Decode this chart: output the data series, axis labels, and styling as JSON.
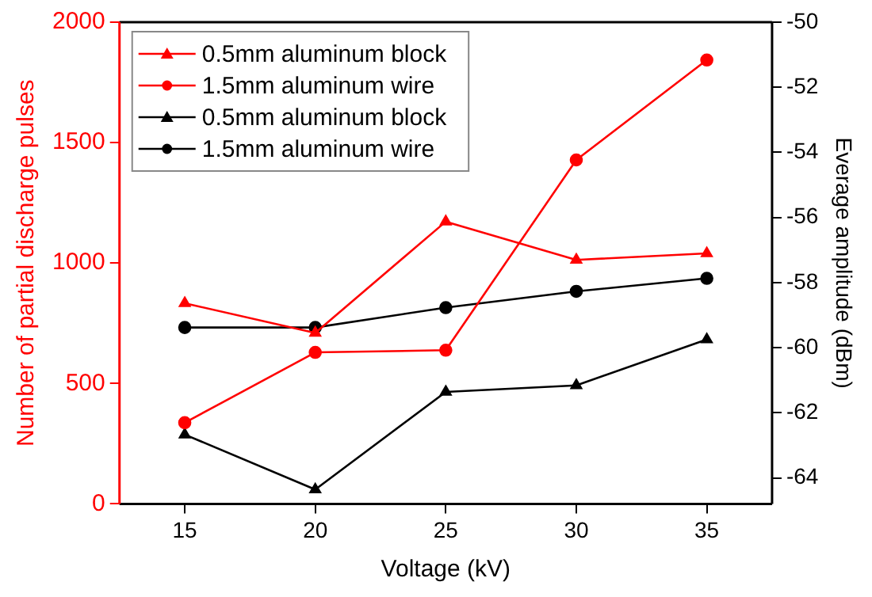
{
  "chart_data": {
    "type": "line",
    "xlabel": "Voltage (kV)",
    "ylabel": "Number of partial discharge pulses",
    "y2label": "Everage amplitude (dBm)",
    "x": [
      15,
      20,
      25,
      30,
      35
    ],
    "xlim": [
      12.5,
      37.5
    ],
    "xticks": [
      15,
      20,
      25,
      30,
      35
    ],
    "ylim": [
      0,
      2000
    ],
    "yticks": [
      0,
      500,
      1000,
      1500,
      2000
    ],
    "y2lim": [
      -64.8,
      -50
    ],
    "y2ticks": [
      -64,
      -62,
      -60,
      -58,
      -56,
      -54,
      -52,
      -50
    ],
    "legend": "top left",
    "grid": false,
    "series": [
      {
        "name": "0.5mm aluminum block",
        "color": "#ff0000",
        "marker": "triangle",
        "values": [
          833,
          710,
          1172,
          1013,
          1040
        ]
      },
      {
        "name": "1.5mm aluminum wire",
        "color": "#ff0000",
        "marker": "circle",
        "values": [
          337,
          629,
          638,
          1428,
          1843
        ]
      },
      {
        "name": "0.5mm aluminum block",
        "color": "#000000",
        "marker": "triangle",
        "axis": "y2",
        "values": [
          -62.67,
          -64.36,
          -61.36,
          -61.16,
          -59.75
        ]
      },
      {
        "name": "1.5mm aluminum wire",
        "color": "#000000",
        "marker": "circle",
        "axis": "y2",
        "values": [
          -59.38,
          -59.38,
          -58.77,
          -58.27,
          -57.87
        ]
      }
    ]
  }
}
